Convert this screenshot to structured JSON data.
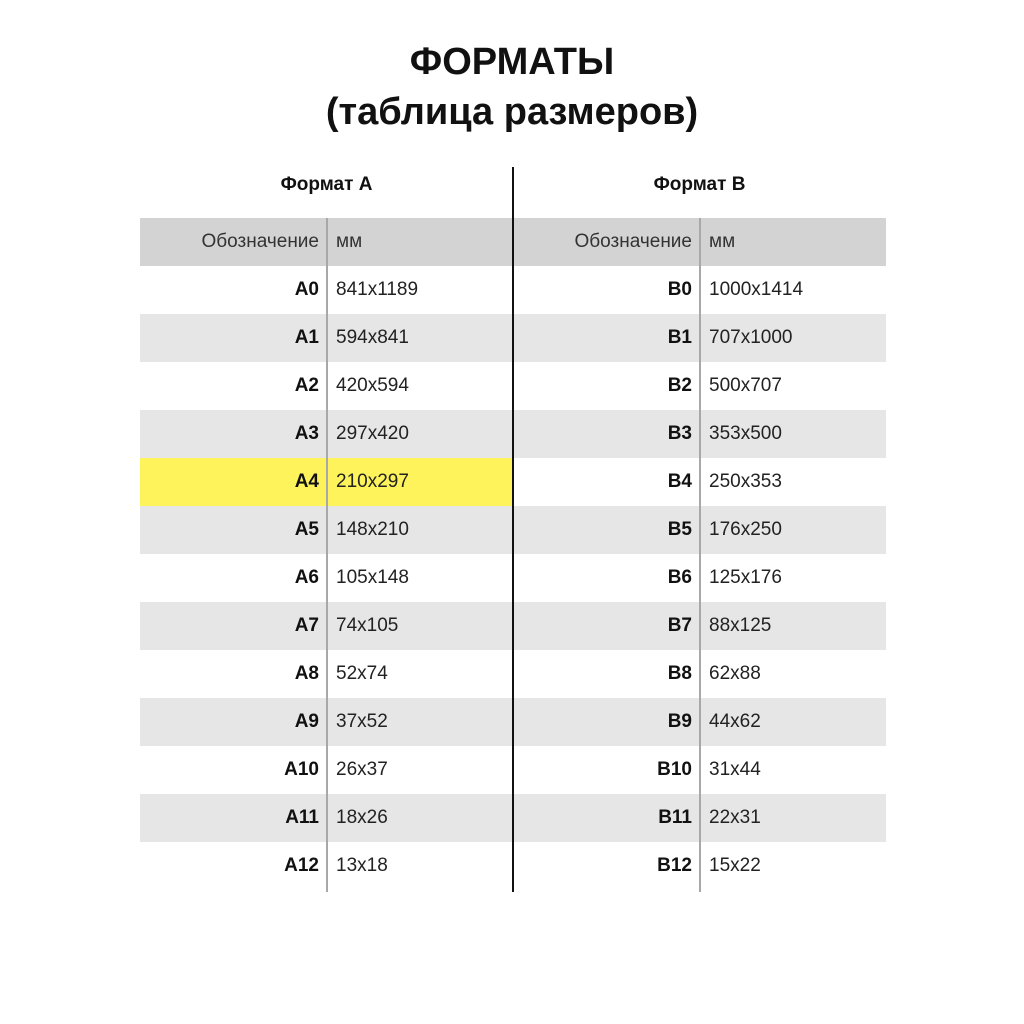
{
  "title": {
    "line1": "ФОРМАТЫ",
    "line2": "(таблица размеров)"
  },
  "highlight_color": "#fff35c",
  "columns": {
    "a": {
      "title": "Формат А",
      "header_label": "Обозначение",
      "header_unit": "мм"
    },
    "b": {
      "title": "Формат В",
      "header_label": "Обозначение",
      "header_unit": "мм"
    }
  },
  "rows": [
    {
      "a_label": "A0",
      "a_size": "841x1189",
      "b_label": "B0",
      "b_size": "1000x1414"
    },
    {
      "a_label": "A1",
      "a_size": "594x841",
      "b_label": "B1",
      "b_size": "707x1000"
    },
    {
      "a_label": "A2",
      "a_size": "420x594",
      "b_label": "B2",
      "b_size": "500x707"
    },
    {
      "a_label": "A3",
      "a_size": "297x420",
      "b_label": "B3",
      "b_size": "353x500"
    },
    {
      "a_label": "A4",
      "a_size": "210x297",
      "b_label": "B4",
      "b_size": "250x353",
      "a_highlighted": true
    },
    {
      "a_label": "A5",
      "a_size": "148x210",
      "b_label": "B5",
      "b_size": "176x250"
    },
    {
      "a_label": "A6",
      "a_size": "105x148",
      "b_label": "B6",
      "b_size": "125x176"
    },
    {
      "a_label": "A7",
      "a_size": "74x105",
      "b_label": "B7",
      "b_size": "88x125"
    },
    {
      "a_label": "A8",
      "a_size": "52x74",
      "b_label": "B8",
      "b_size": "62x88"
    },
    {
      "a_label": "A9",
      "a_size": "37x52",
      "b_label": "B9",
      "b_size": "44x62"
    },
    {
      "a_label": "A10",
      "a_size": "26x37",
      "b_label": "B10",
      "b_size": "31x44"
    },
    {
      "a_label": "A11",
      "a_size": "18x26",
      "b_label": "B11",
      "b_size": "22x31"
    },
    {
      "a_label": "A12",
      "a_size": "13x18",
      "b_label": "B12",
      "b_size": "15x22"
    }
  ]
}
